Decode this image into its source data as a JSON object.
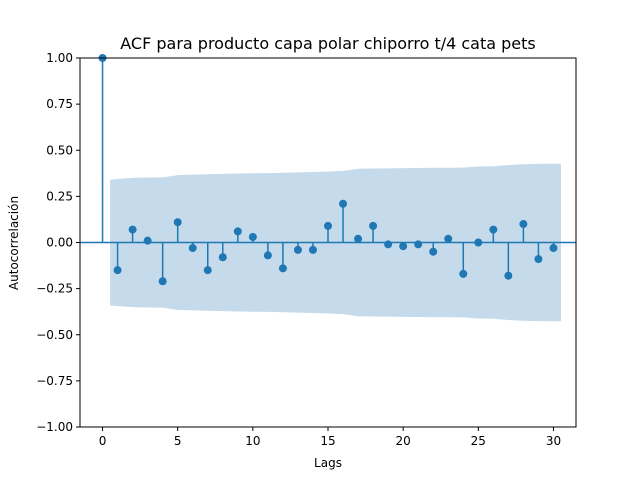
{
  "chart_data": {
    "type": "scatter",
    "subtype": "stem",
    "title": "ACF para producto capa polar chiporro t/4 cata pets",
    "xlabel": "Lags",
    "ylabel": "Autocorrelación",
    "xlim": [
      -1.5,
      31.5
    ],
    "ylim": [
      -1.0,
      1.0
    ],
    "x_ticks": [
      0,
      5,
      10,
      15,
      20,
      25,
      30
    ],
    "x_tick_labels": [
      "0",
      "5",
      "10",
      "15",
      "20",
      "25",
      "30"
    ],
    "y_ticks": [
      -1.0,
      -0.75,
      -0.5,
      -0.25,
      0.0,
      0.25,
      0.5,
      0.75,
      1.0
    ],
    "y_tick_labels": [
      "−1.00",
      "−0.75",
      "−0.50",
      "−0.25",
      "0.00",
      "0.25",
      "0.50",
      "0.75",
      "1.00"
    ],
    "grid": false,
    "lags": [
      0,
      1,
      2,
      3,
      4,
      5,
      6,
      7,
      8,
      9,
      10,
      11,
      12,
      13,
      14,
      15,
      16,
      17,
      18,
      19,
      20,
      21,
      22,
      23,
      24,
      25,
      26,
      27,
      28,
      29,
      30
    ],
    "acf": [
      1.0,
      -0.15,
      0.07,
      0.01,
      -0.21,
      0.11,
      -0.03,
      -0.15,
      -0.08,
      0.06,
      0.03,
      -0.07,
      -0.14,
      -0.04,
      -0.04,
      0.09,
      0.21,
      0.02,
      0.09,
      -0.01,
      -0.02,
      -0.01,
      -0.05,
      0.02,
      -0.17,
      0.0,
      0.07,
      -0.18,
      0.1,
      -0.09,
      -0.03
    ],
    "confint_x": [
      0.5,
      1,
      2,
      3,
      4,
      5,
      6,
      7,
      8,
      9,
      10,
      11,
      12,
      13,
      14,
      15,
      16,
      17,
      18,
      19,
      20,
      21,
      22,
      23,
      24,
      25,
      26,
      27,
      28,
      29,
      30,
      30.5
    ],
    "confint_upper": [
      0.34,
      0.345,
      0.35,
      0.352,
      0.353,
      0.365,
      0.368,
      0.37,
      0.372,
      0.374,
      0.375,
      0.376,
      0.378,
      0.38,
      0.382,
      0.385,
      0.388,
      0.4,
      0.401,
      0.402,
      0.403,
      0.404,
      0.405,
      0.405,
      0.406,
      0.412,
      0.413,
      0.42,
      0.424,
      0.426,
      0.427,
      0.427
    ],
    "colors": {
      "stem": "#1f77b4",
      "marker": "#1f77b4",
      "zero_line": "#1f77b4",
      "band": "#c5dbeb"
    }
  }
}
